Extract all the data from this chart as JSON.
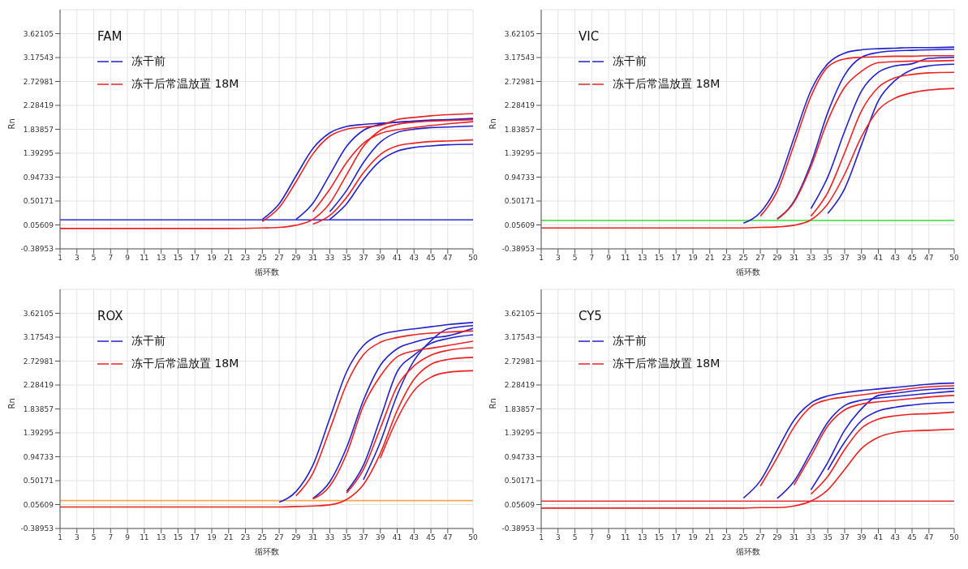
{
  "chart_data": [
    {
      "type": "line",
      "title": "FAM",
      "xlabel": "循环数",
      "ylabel": "Rn",
      "legend": "top left",
      "grid": true,
      "x": [
        1,
        21,
        25,
        27,
        29,
        31,
        33,
        35,
        37,
        39,
        41,
        43,
        45,
        47,
        50
      ],
      "xlim": [
        1,
        50
      ],
      "xticks": [
        1,
        3,
        5,
        7,
        9,
        11,
        13,
        15,
        17,
        19,
        21,
        23,
        25,
        27,
        29,
        31,
        33,
        35,
        37,
        39,
        41,
        43,
        45,
        47,
        50
      ],
      "ylim": [
        -0.38953,
        4.06667
      ],
      "yticks": [
        -0.38953,
        0.05609,
        0.50171,
        0.94733,
        1.39295,
        1.83857,
        2.28419,
        2.72981,
        3.17543,
        3.62105
      ],
      "ref_lines": [
        {
          "axis": "y",
          "value": 0.15,
          "color": "#2a2ad8"
        }
      ],
      "series": [
        {
          "name": "冻干前",
          "color": "#2222cc",
          "values": [
            null,
            null,
            0.16,
            0.45,
            0.97,
            1.48,
            1.77,
            1.89,
            1.93,
            1.95,
            1.97,
            1.99,
            2.01,
            2.02,
            2.04
          ]
        },
        {
          "color": "#2222cc",
          "values": [
            null,
            null,
            null,
            null,
            0.16,
            0.46,
            0.99,
            1.52,
            1.82,
            1.93,
            1.97,
            1.99,
            2.0,
            2.01,
            2.02
          ]
        },
        {
          "color": "#2222cc",
          "values": [
            null,
            null,
            null,
            null,
            null,
            null,
            0.16,
            0.45,
            0.9,
            1.25,
            1.43,
            1.5,
            1.53,
            1.55,
            1.56
          ]
        },
        {
          "color": "#2222cc",
          "values": [
            null,
            null,
            null,
            null,
            null,
            null,
            0.3,
            0.7,
            1.22,
            1.6,
            1.78,
            1.84,
            1.87,
            1.88,
            1.9
          ]
        },
        {
          "name": "冻干后常温放置 18M",
          "color": "#ee2222",
          "values": [
            null,
            null,
            0.12,
            0.38,
            0.86,
            1.38,
            1.71,
            1.84,
            1.88,
            1.91,
            2.02,
            2.06,
            2.09,
            2.11,
            2.13
          ]
        },
        {
          "color": "#ee2222",
          "values": [
            null,
            null,
            null,
            null,
            null,
            0.3,
            0.72,
            1.22,
            1.58,
            1.76,
            1.83,
            1.87,
            1.91,
            1.94,
            1.98
          ]
        },
        {
          "color": "#ee2222",
          "values": [
            null,
            null,
            null,
            null,
            null,
            0.07,
            0.23,
            0.57,
            1.03,
            1.37,
            1.53,
            1.58,
            1.61,
            1.62,
            1.64
          ]
        },
        {
          "color": "#ee2222",
          "values": [
            -0.01,
            -0.01,
            0.0,
            0.01,
            0.05,
            0.16,
            0.46,
            0.99,
            1.52,
            1.82,
            1.93,
            1.97,
            1.99,
            2.0,
            2.02
          ]
        }
      ]
    },
    {
      "type": "line",
      "title": "VIC",
      "xlabel": "循环数",
      "ylabel": "Rn",
      "legend": "top left",
      "grid": true,
      "x": [
        1,
        21,
        25,
        27,
        29,
        31,
        33,
        35,
        37,
        39,
        41,
        43,
        45,
        47,
        50
      ],
      "xlim": [
        1,
        50
      ],
      "xticks": [
        1,
        3,
        5,
        7,
        9,
        11,
        13,
        15,
        17,
        19,
        21,
        23,
        25,
        27,
        29,
        31,
        33,
        35,
        37,
        39,
        41,
        43,
        45,
        47,
        50
      ],
      "ylim": [
        -0.38953,
        4.06667
      ],
      "yticks": [
        -0.38953,
        0.05609,
        0.50171,
        0.94733,
        1.39295,
        1.83857,
        2.28419,
        2.72981,
        3.17543,
        3.62105
      ],
      "ref_lines": [
        {
          "axis": "y",
          "value": 0.14,
          "color": "#33e033"
        }
      ],
      "series": [
        {
          "name": "冻干前",
          "color": "#2222cc",
          "values": [
            null,
            null,
            0.09,
            0.29,
            0.79,
            1.68,
            2.56,
            3.06,
            3.26,
            3.32,
            3.34,
            3.35,
            3.36,
            3.36,
            3.37
          ]
        },
        {
          "color": "#2222cc",
          "values": [
            null,
            null,
            null,
            null,
            0.17,
            0.5,
            1.2,
            2.15,
            2.85,
            3.18,
            3.27,
            3.3,
            3.31,
            3.32,
            3.33
          ]
        },
        {
          "color": "#2222cc",
          "values": [
            null,
            null,
            null,
            null,
            null,
            null,
            0.36,
            0.95,
            1.8,
            2.55,
            2.9,
            3.02,
            3.06,
            3.16,
            3.18
          ]
        },
        {
          "color": "#2222cc",
          "values": [
            null,
            null,
            null,
            null,
            null,
            null,
            null,
            0.27,
            0.73,
            1.55,
            2.37,
            2.75,
            2.95,
            3.02,
            3.05
          ]
        },
        {
          "name": "冻干后常温放置 18M",
          "color": "#ee2222",
          "values": [
            null,
            null,
            null,
            0.22,
            0.68,
            1.55,
            2.45,
            3.0,
            3.15,
            3.18,
            3.19,
            3.2,
            3.2,
            3.21,
            3.21
          ]
        },
        {
          "color": "#ee2222",
          "values": [
            null,
            null,
            null,
            null,
            0.16,
            0.48,
            1.14,
            2.0,
            2.62,
            2.92,
            3.08,
            3.1,
            3.11,
            3.11,
            3.12
          ]
        },
        {
          "color": "#ee2222",
          "values": [
            null,
            null,
            null,
            null,
            null,
            null,
            0.22,
            0.66,
            1.4,
            2.18,
            2.62,
            2.8,
            2.86,
            2.89,
            2.9
          ]
        },
        {
          "color": "#ee2222",
          "values": [
            0,
            0,
            0,
            0.01,
            0.02,
            0.05,
            0.15,
            0.45,
            1.0,
            1.7,
            2.2,
            2.42,
            2.52,
            2.57,
            2.6
          ]
        }
      ]
    },
    {
      "type": "line",
      "title": "ROX",
      "xlabel": "循环数",
      "ylabel": "Rn",
      "legend": "top left",
      "grid": true,
      "x": [
        1,
        21,
        25,
        27,
        29,
        31,
        33,
        35,
        37,
        39,
        41,
        43,
        45,
        47,
        50
      ],
      "xlim": [
        1,
        50
      ],
      "xticks": [
        1,
        3,
        5,
        7,
        9,
        11,
        13,
        15,
        17,
        19,
        21,
        23,
        25,
        27,
        29,
        31,
        33,
        35,
        37,
        39,
        41,
        43,
        45,
        47,
        50
      ],
      "ylim": [
        -0.38953,
        4.06667
      ],
      "yticks": [
        -0.38953,
        0.05609,
        0.50171,
        0.94733,
        1.39295,
        1.83857,
        2.28419,
        2.72981,
        3.17543,
        3.62105
      ],
      "ref_lines": [
        {
          "axis": "y",
          "value": 0.13,
          "color": "#f5a850"
        }
      ],
      "series": [
        {
          "name": "冻干前",
          "color": "#2222cc",
          "values": [
            null,
            null,
            null,
            0.1,
            0.3,
            0.79,
            1.66,
            2.53,
            3.02,
            3.22,
            3.29,
            3.33,
            3.37,
            3.41,
            3.45
          ]
        },
        {
          "color": "#2222cc",
          "values": [
            null,
            null,
            null,
            null,
            null,
            0.17,
            0.48,
            1.12,
            2.0,
            2.65,
            2.96,
            3.08,
            3.16,
            3.2,
            3.34
          ]
        },
        {
          "color": "#2222cc",
          "values": [
            null,
            null,
            null,
            null,
            null,
            null,
            null,
            0.3,
            0.79,
            1.66,
            2.53,
            2.84,
            3.06,
            3.15,
            3.22
          ]
        },
        {
          "color": "#2222cc",
          "values": [
            null,
            null,
            null,
            null,
            null,
            null,
            null,
            null,
            0.52,
            1.22,
            2.1,
            2.74,
            3.11,
            3.33,
            3.39
          ]
        },
        {
          "name": "冻干后常温放置 18M",
          "color": "#ee2222",
          "values": [
            null,
            null,
            null,
            null,
            0.22,
            0.64,
            1.45,
            2.3,
            2.85,
            3.08,
            3.17,
            3.22,
            3.25,
            3.27,
            3.29
          ]
        },
        {
          "color": "#ee2222",
          "values": [
            null,
            null,
            null,
            null,
            null,
            0.16,
            0.4,
            1.0,
            1.9,
            2.45,
            2.81,
            2.92,
            2.97,
            3.02,
            3.1
          ]
        },
        {
          "color": "#ee2222",
          "values": [
            null,
            null,
            null,
            null,
            null,
            null,
            null,
            0.27,
            0.71,
            1.48,
            2.26,
            2.64,
            2.84,
            2.93,
            2.98
          ]
        },
        {
          "color": "#ee2222",
          "values": [
            null,
            null,
            null,
            null,
            null,
            null,
            null,
            null,
            null,
            0.92,
            1.65,
            2.18,
            2.43,
            2.52,
            2.55
          ]
        },
        {
          "color": "#ee2222",
          "values": [
            0.01,
            0.01,
            0.01,
            0.01,
            0.02,
            0.03,
            0.05,
            0.15,
            0.43,
            1.01,
            1.81,
            2.39,
            2.67,
            2.76,
            2.8
          ]
        }
      ]
    },
    {
      "type": "line",
      "title": "CY5",
      "xlabel": "循环数",
      "ylabel": "Rn",
      "legend": "top left",
      "grid": true,
      "x": [
        1,
        21,
        25,
        27,
        29,
        31,
        33,
        35,
        37,
        39,
        41,
        43,
        45,
        47,
        50
      ],
      "xlim": [
        1,
        50
      ],
      "xticks": [
        1,
        3,
        5,
        7,
        9,
        11,
        13,
        15,
        17,
        19,
        21,
        23,
        25,
        27,
        29,
        31,
        33,
        35,
        37,
        39,
        41,
        43,
        45,
        47,
        50
      ],
      "ylim": [
        -0.38953,
        4.06667
      ],
      "yticks": [
        -0.38953,
        0.05609,
        0.50171,
        0.94733,
        1.39295,
        1.83857,
        2.28419,
        2.72981,
        3.17543,
        3.62105
      ],
      "ref_lines": [
        {
          "axis": "y",
          "value": 0.12,
          "color": "#e83030"
        }
      ],
      "series": [
        {
          "name": "冻干前",
          "color": "#2222cc",
          "values": [
            null,
            null,
            0.18,
            0.5,
            1.07,
            1.63,
            1.95,
            2.08,
            2.14,
            2.18,
            2.21,
            2.24,
            2.27,
            2.3,
            2.32
          ]
        },
        {
          "color": "#2222cc",
          "values": [
            null,
            null,
            null,
            null,
            0.17,
            0.49,
            1.04,
            1.59,
            1.9,
            2.0,
            2.04,
            2.07,
            2.1,
            2.13,
            2.17
          ]
        },
        {
          "color": "#2222cc",
          "values": [
            null,
            null,
            null,
            null,
            null,
            null,
            0.33,
            0.84,
            1.44,
            1.84,
            2.09,
            2.13,
            2.17,
            2.2,
            2.22
          ]
        },
        {
          "color": "#2222cc",
          "values": [
            null,
            null,
            null,
            null,
            null,
            null,
            null,
            0.7,
            1.22,
            1.62,
            1.8,
            1.87,
            1.91,
            1.94,
            1.96
          ]
        },
        {
          "name": "冻干后常温放置 18M",
          "color": "#ee2222",
          "values": [
            null,
            null,
            null,
            0.4,
            0.93,
            1.5,
            1.88,
            2.01,
            2.06,
            2.1,
            2.14,
            2.18,
            2.22,
            2.25,
            2.27
          ]
        },
        {
          "color": "#ee2222",
          "values": [
            null,
            null,
            null,
            null,
            null,
            0.42,
            0.96,
            1.52,
            1.82,
            1.93,
            1.97,
            2.0,
            2.03,
            2.06,
            2.09
          ]
        },
        {
          "color": "#ee2222",
          "values": [
            null,
            null,
            null,
            null,
            null,
            null,
            0.25,
            0.58,
            1.08,
            1.48,
            1.65,
            1.71,
            1.74,
            1.75,
            1.78
          ]
        },
        {
          "color": "#ee2222",
          "values": [
            -0.01,
            -0.01,
            -0.01,
            0.0,
            0.0,
            0.03,
            0.12,
            0.33,
            0.71,
            1.1,
            1.31,
            1.4,
            1.43,
            1.44,
            1.46
          ]
        }
      ]
    }
  ]
}
